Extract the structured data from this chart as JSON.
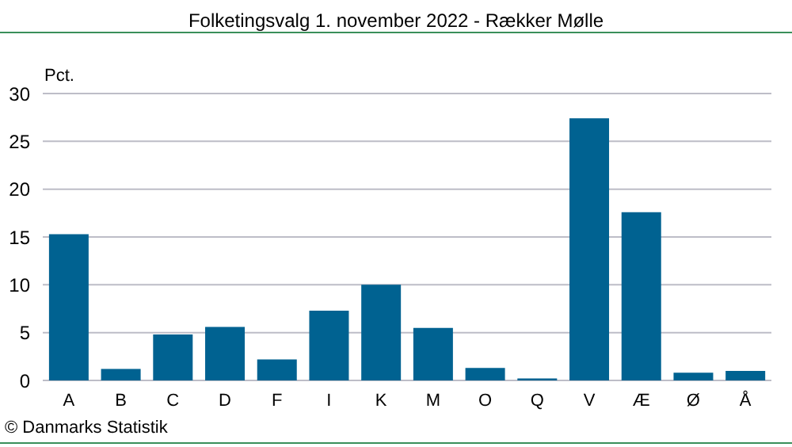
{
  "chart_data": {
    "type": "bar",
    "title": "Folketingsvalg 1. november 2022 - Rækker Mølle",
    "ylabel": "Pct.",
    "categories": [
      "A",
      "B",
      "C",
      "D",
      "F",
      "I",
      "K",
      "M",
      "O",
      "Q",
      "V",
      "Æ",
      "Ø",
      "Å"
    ],
    "values": [
      15.3,
      1.2,
      4.8,
      5.6,
      2.2,
      7.3,
      10.0,
      5.5,
      1.3,
      0.2,
      27.4,
      17.6,
      0.8,
      1.0
    ],
    "color": "#006291",
    "ylim": [
      0,
      30
    ],
    "yticks": [
      0,
      5,
      10,
      15,
      20,
      25,
      30
    ],
    "grid": "y",
    "legend": false,
    "annotations": [
      "© Danmarks Statistik"
    ]
  }
}
